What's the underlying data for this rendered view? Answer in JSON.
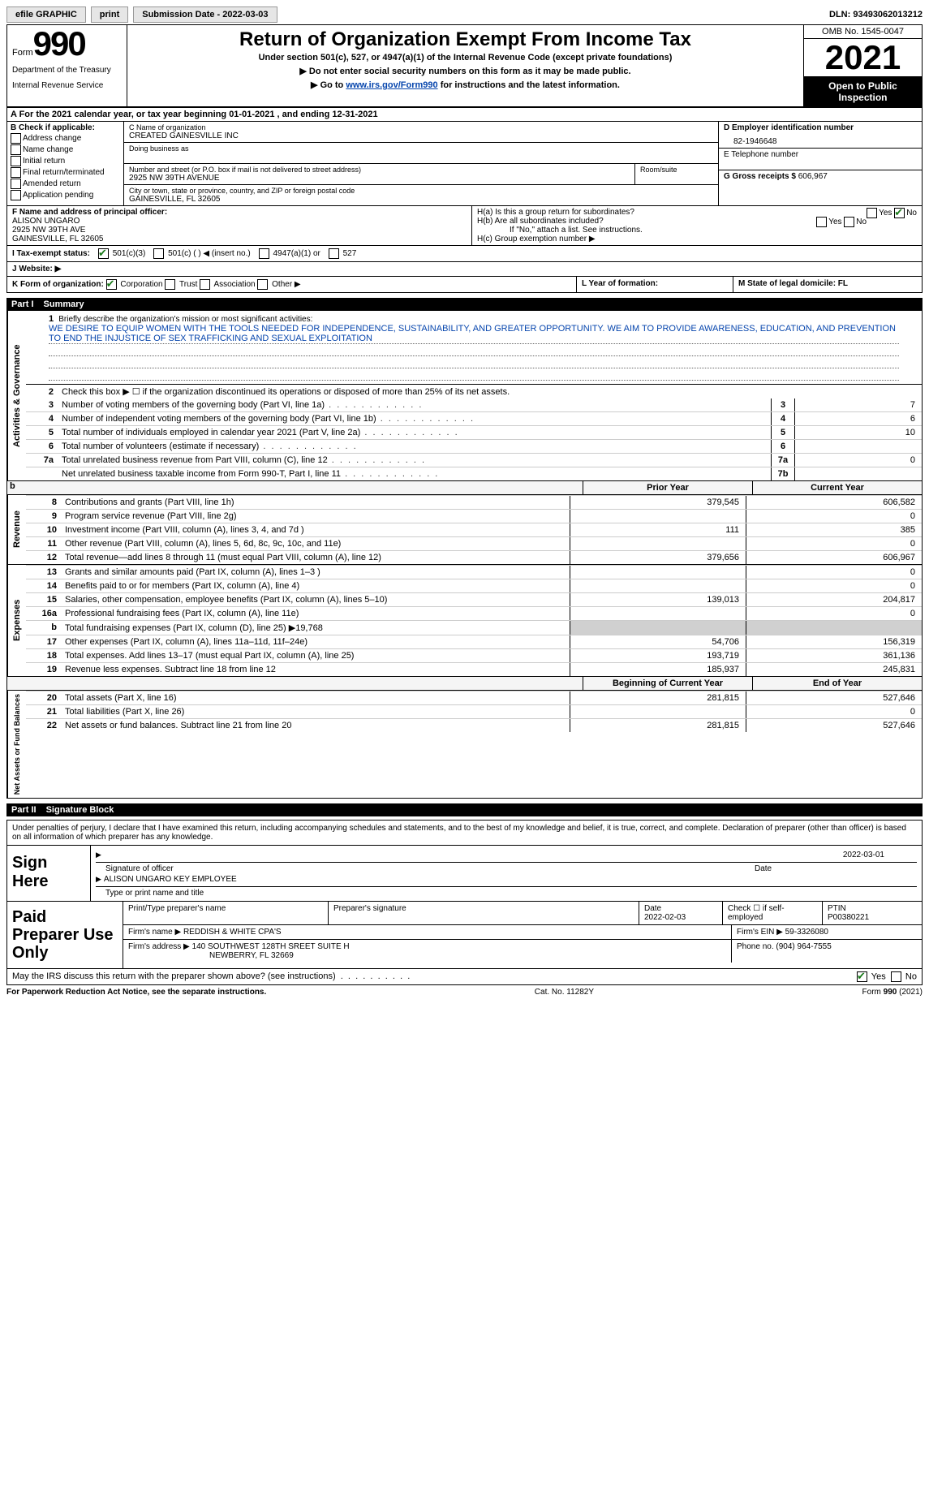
{
  "topbar": {
    "efile": "efile GRAPHIC",
    "print": "print",
    "submission_lbl": "Submission Date - 2022-03-03",
    "dln_lbl": "DLN: 93493062013212"
  },
  "header": {
    "form_word": "Form",
    "form_no": "990",
    "dept": "Department of the Treasury",
    "irs": "Internal Revenue Service",
    "title": "Return of Organization Exempt From Income Tax",
    "subtitle": "Under section 501(c), 527, or 4947(a)(1) of the Internal Revenue Code (except private foundations)",
    "note1": "▶ Do not enter social security numbers on this form as it may be made public.",
    "note2_pre": "▶ Go to ",
    "note2_link": "www.irs.gov/Form990",
    "note2_post": " for instructions and the latest information.",
    "omb": "OMB No. 1545-0047",
    "year": "2021",
    "inspection": "Open to Public Inspection"
  },
  "row_a": "A  For the 2021 calendar year, or tax year beginning 01-01-2021    , and ending 12-31-2021",
  "col_b": {
    "lbl": "B Check if applicable:",
    "o1": "Address change",
    "o2": "Name change",
    "o3": "Initial return",
    "o4": "Final return/terminated",
    "o5": "Amended return",
    "o6": "Application pending"
  },
  "col_c": {
    "c_lbl": "C Name of organization",
    "c_val": "CREATED GAINESVILLE INC",
    "dba_lbl": "Doing business as",
    "addr_lbl": "Number and street (or P.O. box if mail is not delivered to street address)",
    "addr_val": "2925 NW 39TH AVENUE",
    "room_lbl": "Room/suite",
    "city_lbl": "City or town, state or province, country, and ZIP or foreign postal code",
    "city_val": "GAINESVILLE, FL  32605"
  },
  "col_d": {
    "d_lbl": "D Employer identification number",
    "d_val": "82-1946648",
    "e_lbl": "E Telephone number",
    "g_lbl": "G Gross receipts $",
    "g_val": "606,967"
  },
  "col_f": {
    "lbl": "F  Name and address of principal officer:",
    "name": "ALISON UNGARO",
    "addr1": "2925 NW 39TH AVE",
    "addr2": "GAINESVILLE, FL  32605"
  },
  "col_h": {
    "ha": "H(a)  Is this a group return for subordinates?",
    "hb": "H(b)  Are all subordinates included?",
    "hb_note": "If \"No,\" attach a list. See instructions.",
    "hc": "H(c)  Group exemption number ▶",
    "yes": "Yes",
    "no": "No"
  },
  "status": {
    "lbl": "I  Tax-exempt status:",
    "o1": "501(c)(3)",
    "o2": "501(c) (  ) ◀ (insert no.)",
    "o3": "4947(a)(1) or",
    "o4": "527"
  },
  "website_lbl": "J  Website: ▶",
  "korg": {
    "k": "K Form of organization:",
    "k1": "Corporation",
    "k2": "Trust",
    "k3": "Association",
    "k4": "Other ▶",
    "l": "L Year of formation:",
    "m": "M State of legal domicile: FL"
  },
  "part1": {
    "pt": "Part I",
    "ttl": "Summary",
    "vlabels": {
      "a": "Activities & Governance",
      "r": "Revenue",
      "e": "Expenses",
      "n": "Net Assets or Fund Balances"
    },
    "q1": "Briefly describe the organization's mission or most significant activities:",
    "mission": "WE DESIRE TO EQUIP WOMEN WITH THE TOOLS NEEDED FOR INDEPENDENCE, SUSTAINABILITY, AND GREATER OPPORTUNITY. WE AIM TO PROVIDE AWARENESS, EDUCATION, AND PREVENTION TO END THE INJUSTICE OF SEX TRAFFICKING AND SEXUAL EXPLOITATION",
    "q2": "Check this box ▶ ☐ if the organization discontinued its operations or disposed of more than 25% of its net assets.",
    "rows": [
      {
        "no": "3",
        "txt": "Number of voting members of the governing body (Part VI, line 1a)",
        "box": "3",
        "val": "7"
      },
      {
        "no": "4",
        "txt": "Number of independent voting members of the governing body (Part VI, line 1b)",
        "box": "4",
        "val": "6"
      },
      {
        "no": "5",
        "txt": "Total number of individuals employed in calendar year 2021 (Part V, line 2a)",
        "box": "5",
        "val": "10"
      },
      {
        "no": "6",
        "txt": "Total number of volunteers (estimate if necessary)",
        "box": "6",
        "val": ""
      },
      {
        "no": "7a",
        "txt": "Total unrelated business revenue from Part VIII, column (C), line 12",
        "box": "7a",
        "val": "0"
      },
      {
        "no": "",
        "txt": "Net unrelated business taxable income from Form 990-T, Part I, line 11",
        "box": "7b",
        "val": ""
      }
    ],
    "finhead_prior": "Prior Year",
    "finhead_curr": "Current Year",
    "revenue": [
      {
        "no": "8",
        "txt": "Contributions and grants (Part VIII, line 1h)",
        "p": "379,545",
        "c": "606,582"
      },
      {
        "no": "9",
        "txt": "Program service revenue (Part VIII, line 2g)",
        "p": "",
        "c": "0"
      },
      {
        "no": "10",
        "txt": "Investment income (Part VIII, column (A), lines 3, 4, and 7d )",
        "p": "111",
        "c": "385"
      },
      {
        "no": "11",
        "txt": "Other revenue (Part VIII, column (A), lines 5, 6d, 8c, 9c, 10c, and 11e)",
        "p": "",
        "c": "0"
      },
      {
        "no": "12",
        "txt": "Total revenue—add lines 8 through 11 (must equal Part VIII, column (A), line 12)",
        "p": "379,656",
        "c": "606,967"
      }
    ],
    "expenses": [
      {
        "no": "13",
        "txt": "Grants and similar amounts paid (Part IX, column (A), lines 1–3 )",
        "p": "",
        "c": "0"
      },
      {
        "no": "14",
        "txt": "Benefits paid to or for members (Part IX, column (A), line 4)",
        "p": "",
        "c": "0"
      },
      {
        "no": "15",
        "txt": "Salaries, other compensation, employee benefits (Part IX, column (A), lines 5–10)",
        "p": "139,013",
        "c": "204,817"
      },
      {
        "no": "16a",
        "txt": "Professional fundraising fees (Part IX, column (A), line 11e)",
        "p": "",
        "c": "0"
      },
      {
        "no": "b",
        "txt": "Total fundraising expenses (Part IX, column (D), line 25) ▶19,768",
        "p": "SHADE",
        "c": "SHADE"
      },
      {
        "no": "17",
        "txt": "Other expenses (Part IX, column (A), lines 11a–11d, 11f–24e)",
        "p": "54,706",
        "c": "156,319"
      },
      {
        "no": "18",
        "txt": "Total expenses. Add lines 13–17 (must equal Part IX, column (A), line 25)",
        "p": "193,719",
        "c": "361,136"
      },
      {
        "no": "19",
        "txt": "Revenue less expenses. Subtract line 18 from line 12",
        "p": "185,937",
        "c": "245,831"
      }
    ],
    "nethead_prior": "Beginning of Current Year",
    "nethead_curr": "End of Year",
    "net": [
      {
        "no": "20",
        "txt": "Total assets (Part X, line 16)",
        "p": "281,815",
        "c": "527,646"
      },
      {
        "no": "21",
        "txt": "Total liabilities (Part X, line 26)",
        "p": "",
        "c": "0"
      },
      {
        "no": "22",
        "txt": "Net assets or fund balances. Subtract line 21 from line 20",
        "p": "281,815",
        "c": "527,646"
      }
    ]
  },
  "part2": {
    "pt": "Part II",
    "ttl": "Signature Block",
    "decl": "Under penalties of perjury, I declare that I have examined this return, including accompanying schedules and statements, and to the best of my knowledge and belief, it is true, correct, and complete. Declaration of preparer (other than officer) is based on all information of which preparer has any knowledge.",
    "sign_here": "Sign Here",
    "sig_of_officer": "Signature of officer",
    "sig_date": "2022-03-01",
    "date_lbl": "Date",
    "officer_name": "ALISON UNGARO  KEY EMPLOYEE",
    "type_lbl": "Type or print name and title",
    "paid_lbl": "Paid Preparer Use Only",
    "prep_name_lbl": "Print/Type preparer's name",
    "prep_sig_lbl": "Preparer's signature",
    "prep_date_lbl": "Date",
    "prep_date": "2022-02-03",
    "check_self": "Check ☐ if self-employed",
    "ptin_lbl": "PTIN",
    "ptin": "P00380221",
    "firm_name_lbl": "Firm's name    ▶",
    "firm_name": "REDDISH & WHITE CPA'S",
    "firm_ein_lbl": "Firm's EIN ▶",
    "firm_ein": "59-3326080",
    "firm_addr_lbl": "Firm's address ▶",
    "firm_addr1": "140 SOUTHWEST 128TH SREET SUITE H",
    "firm_addr2": "NEWBERRY, FL  32669",
    "phone_lbl": "Phone no.",
    "phone": "(904) 964-7555",
    "discuss": "May the IRS discuss this return with the preparer shown above? (see instructions)"
  },
  "footer": {
    "left": "For Paperwork Reduction Act Notice, see the separate instructions.",
    "mid": "Cat. No. 11282Y",
    "right": "Form 990 (2021)"
  }
}
